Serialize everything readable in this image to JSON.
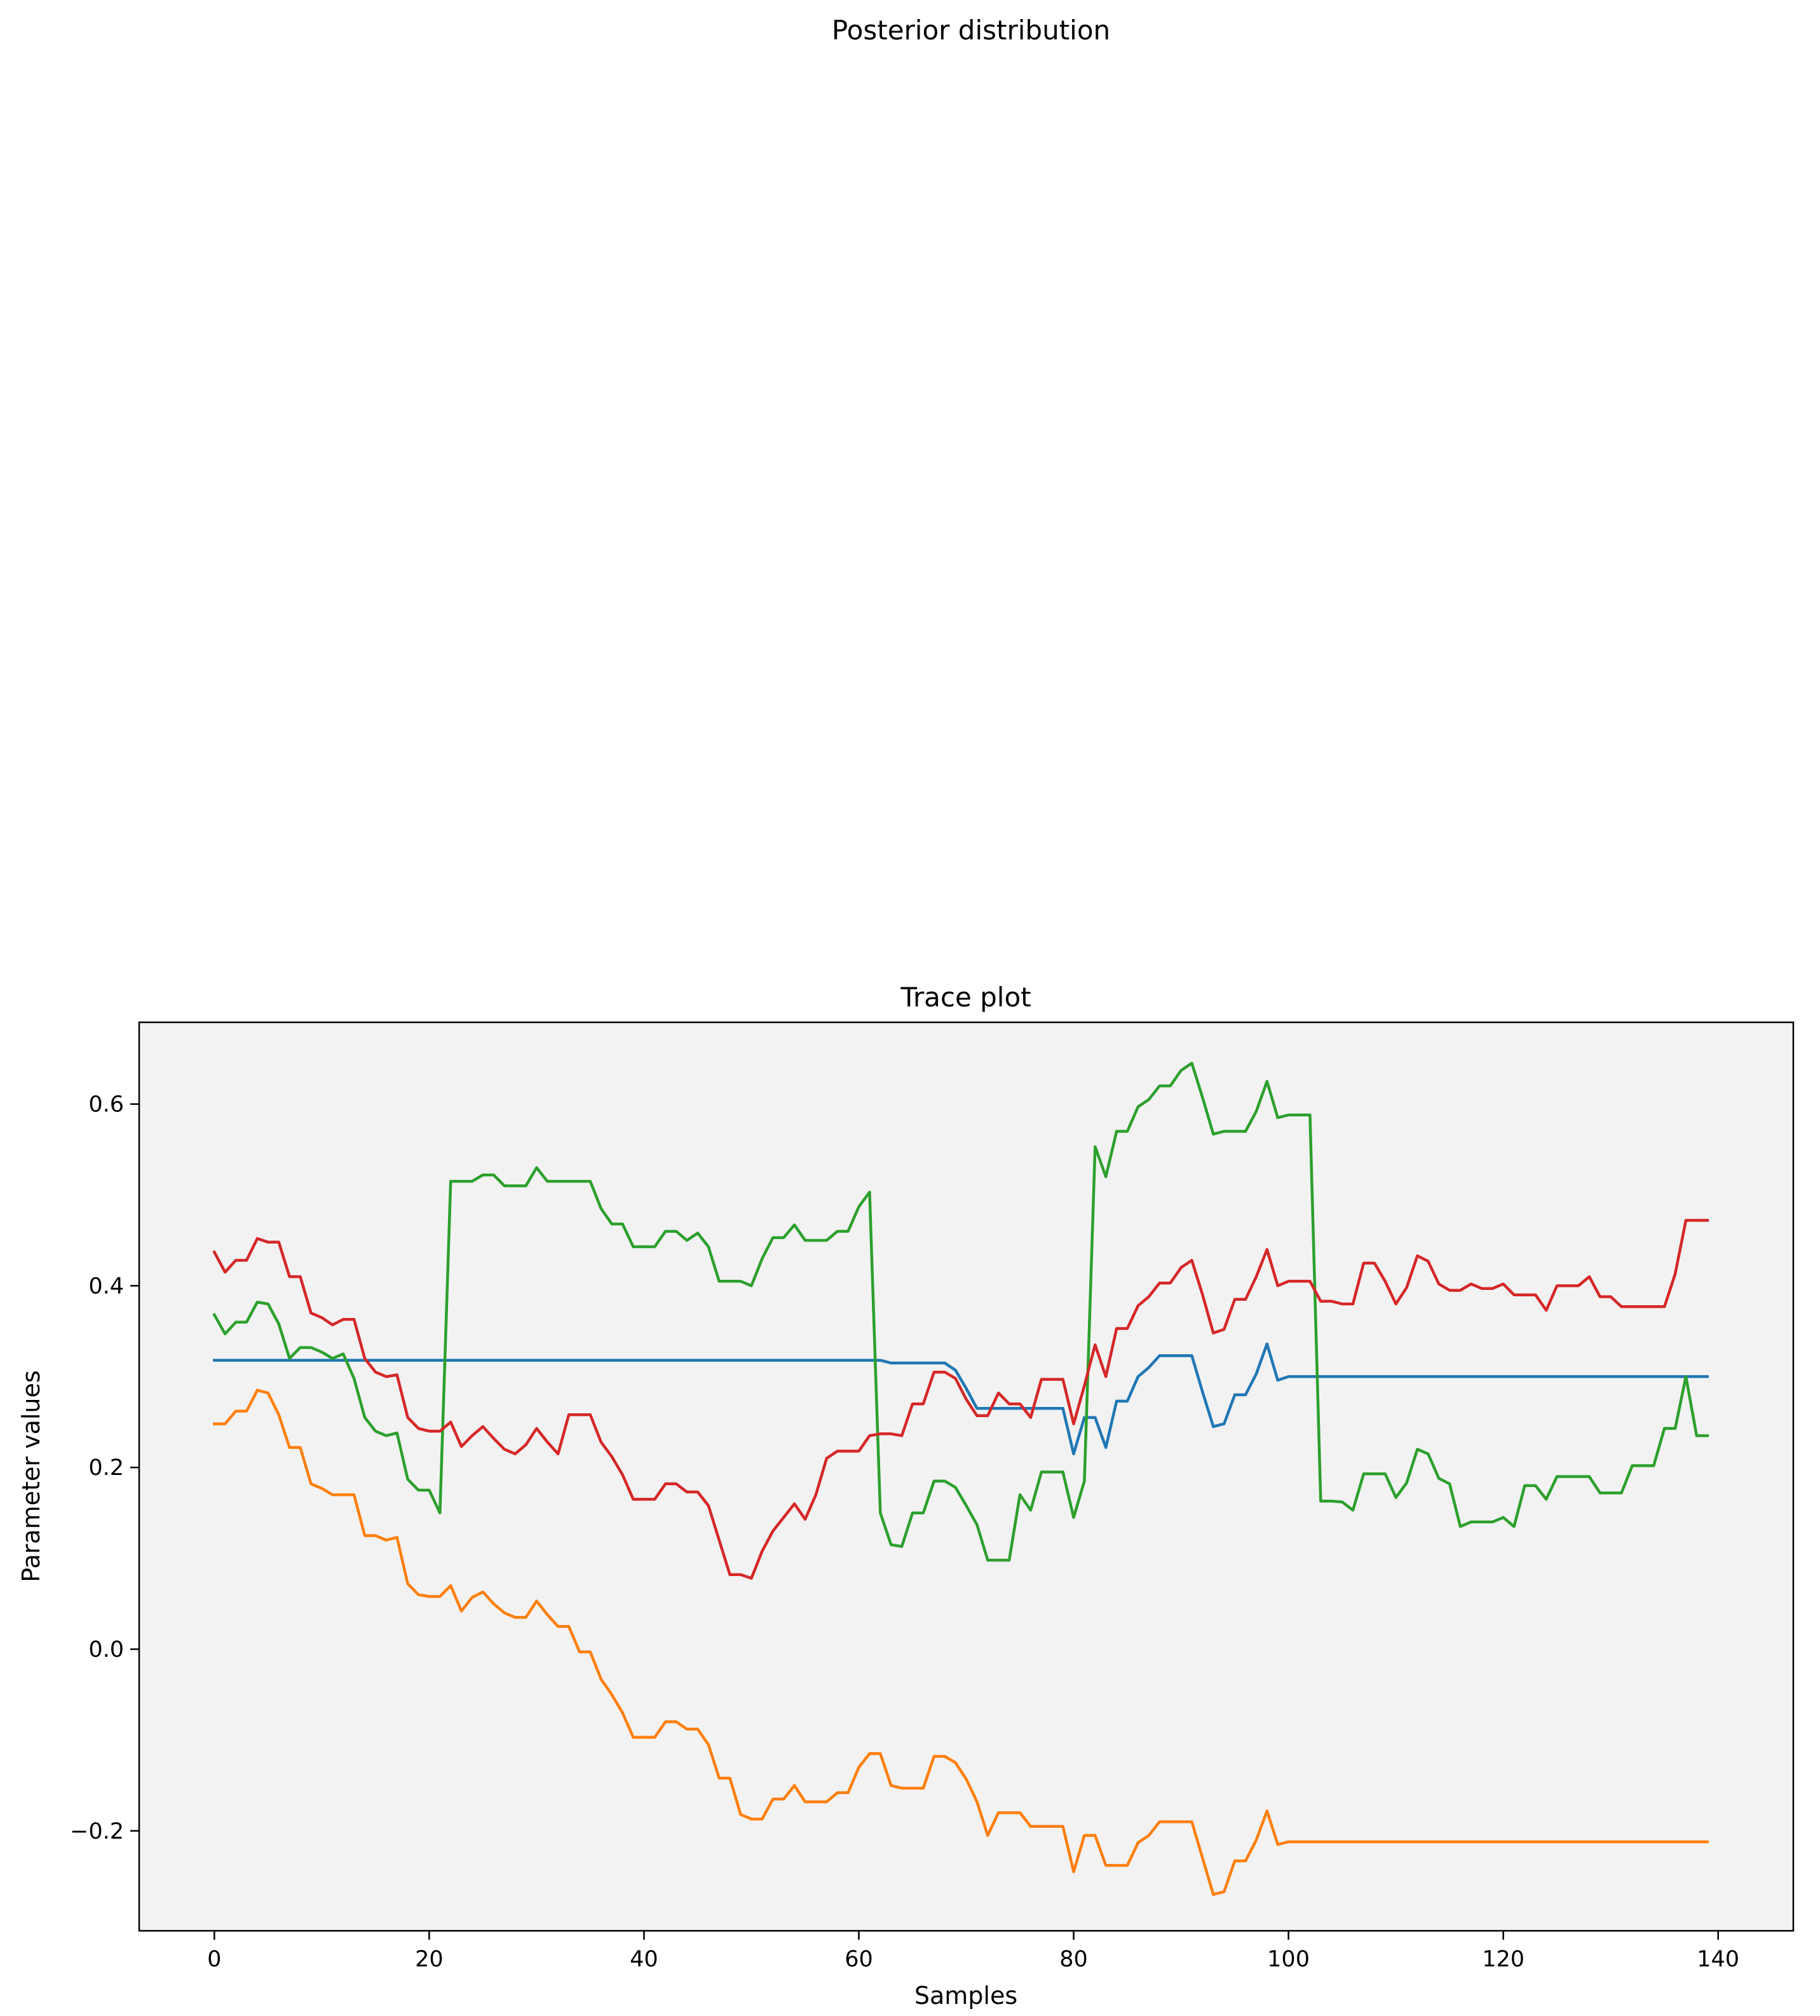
{
  "figure": {
    "suptitle": "Posterior distribution"
  },
  "chart_data": {
    "type": "line",
    "title": "Trace plot",
    "xlabel": "Samples",
    "ylabel": "Parameter values",
    "xlim": [
      -7,
      147
    ],
    "ylim": [
      -0.31,
      0.69
    ],
    "xticks": [
      0,
      20,
      40,
      60,
      80,
      100,
      120,
      140
    ],
    "yticks": [
      -0.2,
      0.0,
      0.2,
      0.4,
      0.6
    ],
    "xtick_labels": [
      "0",
      "20",
      "40",
      "60",
      "80",
      "100",
      "120",
      "140"
    ],
    "ytick_labels": [
      "−0.2",
      "0.0",
      "0.2",
      "0.4",
      "0.6"
    ],
    "grid": false,
    "legend": "none",
    "plot_background": "#f2f2f2",
    "series": [
      {
        "color": "#1f77b4",
        "values": [
          0.318,
          0.318,
          0.318,
          0.318,
          0.318,
          0.318,
          0.318,
          0.318,
          0.318,
          0.318,
          0.318,
          0.318,
          0.318,
          0.318,
          0.318,
          0.318,
          0.318,
          0.318,
          0.318,
          0.318,
          0.318,
          0.318,
          0.318,
          0.318,
          0.318,
          0.318,
          0.318,
          0.318,
          0.318,
          0.318,
          0.318,
          0.318,
          0.318,
          0.318,
          0.318,
          0.318,
          0.318,
          0.318,
          0.318,
          0.318,
          0.318,
          0.318,
          0.318,
          0.318,
          0.318,
          0.318,
          0.318,
          0.318,
          0.318,
          0.318,
          0.318,
          0.318,
          0.318,
          0.318,
          0.318,
          0.318,
          0.318,
          0.318,
          0.318,
          0.318,
          0.318,
          0.318,
          0.318,
          0.315,
          0.315,
          0.315,
          0.315,
          0.315,
          0.315,
          0.307,
          0.287,
          0.265,
          0.265,
          0.265,
          0.265,
          0.265,
          0.265,
          0.265,
          0.265,
          0.265,
          0.215,
          0.255,
          0.255,
          0.222,
          0.273,
          0.273,
          0.3,
          0.31,
          0.323,
          0.323,
          0.323,
          0.323,
          0.283,
          0.245,
          0.248,
          0.28,
          0.28,
          0.303,
          0.336,
          0.296,
          0.3,
          0.3,
          0.3,
          0.3,
          0.3,
          0.3,
          0.3,
          0.3,
          0.3,
          0.3,
          0.3,
          0.3,
          0.3,
          0.3,
          0.3,
          0.3,
          0.3,
          0.3,
          0.3,
          0.3,
          0.3,
          0.3,
          0.3,
          0.3,
          0.3,
          0.3,
          0.3,
          0.3,
          0.3,
          0.3,
          0.3,
          0.3,
          0.3,
          0.3,
          0.3,
          0.3,
          0.3,
          0.3,
          0.3,
          0.3
        ]
      },
      {
        "color": "#ff7f0e",
        "values": [
          0.248,
          0.248,
          0.262,
          0.262,
          0.285,
          0.282,
          0.258,
          0.222,
          0.222,
          0.182,
          0.177,
          0.17,
          0.17,
          0.17,
          0.125,
          0.125,
          0.12,
          0.123,
          0.072,
          0.06,
          0.058,
          0.058,
          0.07,
          0.042,
          0.057,
          0.063,
          0.05,
          0.04,
          0.035,
          0.035,
          0.053,
          0.038,
          0.025,
          0.025,
          -0.003,
          -0.003,
          -0.033,
          -0.05,
          -0.07,
          -0.097,
          -0.097,
          -0.097,
          -0.08,
          -0.08,
          -0.088,
          -0.088,
          -0.105,
          -0.142,
          -0.142,
          -0.182,
          -0.187,
          -0.187,
          -0.165,
          -0.165,
          -0.15,
          -0.168,
          -0.168,
          -0.168,
          -0.158,
          -0.158,
          -0.13,
          -0.115,
          -0.115,
          -0.15,
          -0.153,
          -0.153,
          -0.153,
          -0.118,
          -0.118,
          -0.125,
          -0.143,
          -0.168,
          -0.205,
          -0.18,
          -0.18,
          -0.18,
          -0.195,
          -0.195,
          -0.195,
          -0.195,
          -0.245,
          -0.205,
          -0.205,
          -0.238,
          -0.238,
          -0.238,
          -0.213,
          -0.205,
          -0.19,
          -0.19,
          -0.19,
          -0.19,
          -0.23,
          -0.27,
          -0.267,
          -0.233,
          -0.233,
          -0.21,
          -0.178,
          -0.215,
          -0.212,
          -0.212,
          -0.212,
          -0.212,
          -0.212,
          -0.212,
          -0.212,
          -0.212,
          -0.212,
          -0.212,
          -0.212,
          -0.212,
          -0.212,
          -0.212,
          -0.212,
          -0.212,
          -0.212,
          -0.212,
          -0.212,
          -0.212,
          -0.212,
          -0.212,
          -0.212,
          -0.212,
          -0.212,
          -0.212,
          -0.212,
          -0.212,
          -0.212,
          -0.212,
          -0.212,
          -0.212,
          -0.212,
          -0.212,
          -0.212,
          -0.212,
          -0.212,
          -0.212,
          -0.212,
          -0.212
        ]
      },
      {
        "color": "#2ca02c",
        "values": [
          0.368,
          0.347,
          0.36,
          0.36,
          0.382,
          0.38,
          0.358,
          0.32,
          0.332,
          0.332,
          0.327,
          0.32,
          0.325,
          0.298,
          0.255,
          0.24,
          0.235,
          0.238,
          0.187,
          0.175,
          0.175,
          0.15,
          0.515,
          0.515,
          0.515,
          0.522,
          0.522,
          0.51,
          0.51,
          0.51,
          0.53,
          0.515,
          0.515,
          0.515,
          0.515,
          0.515,
          0.485,
          0.468,
          0.468,
          0.443,
          0.443,
          0.443,
          0.46,
          0.46,
          0.45,
          0.458,
          0.443,
          0.405,
          0.405,
          0.405,
          0.4,
          0.43,
          0.453,
          0.453,
          0.467,
          0.45,
          0.45,
          0.45,
          0.46,
          0.46,
          0.487,
          0.503,
          0.15,
          0.115,
          0.113,
          0.15,
          0.15,
          0.185,
          0.185,
          0.178,
          0.158,
          0.137,
          0.098,
          0.098,
          0.098,
          0.17,
          0.153,
          0.195,
          0.195,
          0.195,
          0.145,
          0.185,
          0.553,
          0.52,
          0.57,
          0.57,
          0.597,
          0.605,
          0.62,
          0.62,
          0.637,
          0.645,
          0.607,
          0.567,
          0.57,
          0.57,
          0.57,
          0.592,
          0.625,
          0.585,
          0.588,
          0.588,
          0.588,
          0.163,
          0.163,
          0.162,
          0.153,
          0.193,
          0.193,
          0.193,
          0.167,
          0.183,
          0.22,
          0.215,
          0.188,
          0.182,
          0.135,
          0.14,
          0.14,
          0.14,
          0.145,
          0.135,
          0.18,
          0.18,
          0.165,
          0.19,
          0.19,
          0.19,
          0.19,
          0.172,
          0.172,
          0.172,
          0.202,
          0.202,
          0.202,
          0.243,
          0.243,
          0.3,
          0.235,
          0.235
        ]
      },
      {
        "color": "#d62728",
        "values": [
          0.437,
          0.415,
          0.428,
          0.428,
          0.452,
          0.448,
          0.448,
          0.41,
          0.41,
          0.37,
          0.365,
          0.357,
          0.363,
          0.363,
          0.32,
          0.305,
          0.3,
          0.302,
          0.255,
          0.243,
          0.24,
          0.24,
          0.25,
          0.223,
          0.235,
          0.245,
          0.232,
          0.22,
          0.215,
          0.225,
          0.243,
          0.228,
          0.215,
          0.258,
          0.258,
          0.258,
          0.228,
          0.212,
          0.192,
          0.165,
          0.165,
          0.165,
          0.182,
          0.182,
          0.173,
          0.173,
          0.158,
          0.12,
          0.082,
          0.082,
          0.078,
          0.108,
          0.13,
          0.145,
          0.16,
          0.143,
          0.17,
          0.21,
          0.218,
          0.218,
          0.218,
          0.235,
          0.237,
          0.237,
          0.235,
          0.27,
          0.27,
          0.305,
          0.305,
          0.298,
          0.275,
          0.257,
          0.257,
          0.282,
          0.27,
          0.27,
          0.255,
          0.297,
          0.297,
          0.297,
          0.248,
          0.29,
          0.335,
          0.3,
          0.353,
          0.353,
          0.378,
          0.388,
          0.403,
          0.403,
          0.42,
          0.428,
          0.39,
          0.348,
          0.352,
          0.385,
          0.385,
          0.41,
          0.44,
          0.4,
          0.405,
          0.405,
          0.405,
          0.383,
          0.383,
          0.38,
          0.38,
          0.425,
          0.425,
          0.405,
          0.38,
          0.398,
          0.433,
          0.427,
          0.402,
          0.395,
          0.395,
          0.402,
          0.397,
          0.397,
          0.402,
          0.39,
          0.39,
          0.39,
          0.373,
          0.4,
          0.4,
          0.4,
          0.41,
          0.388,
          0.388,
          0.377,
          0.377,
          0.377,
          0.377,
          0.377,
          0.413,
          0.472,
          0.472,
          0.472
        ]
      }
    ]
  }
}
